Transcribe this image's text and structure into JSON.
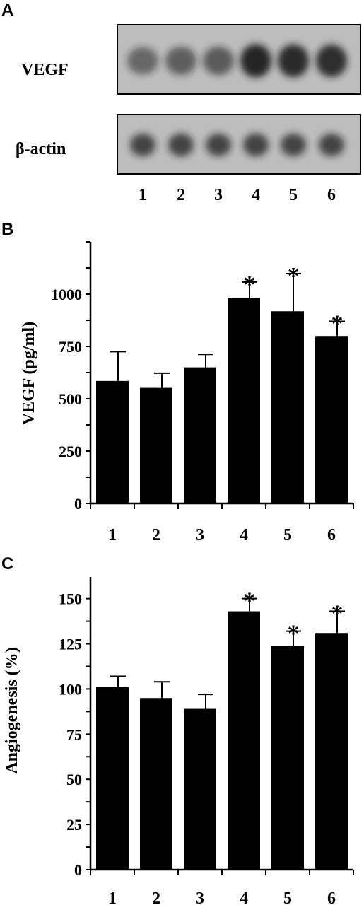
{
  "panel_a": {
    "label": "A",
    "blots": [
      {
        "name": "VEGF",
        "band_intensity": [
          0.55,
          0.6,
          0.62,
          0.95,
          0.92,
          0.9
        ]
      },
      {
        "name": "β-actin",
        "band_intensity": [
          0.75,
          0.78,
          0.75,
          0.78,
          0.75,
          0.75
        ]
      }
    ],
    "lanes": [
      "1",
      "2",
      "3",
      "4",
      "5",
      "6"
    ]
  },
  "chart_data": [
    {
      "panel": "B",
      "type": "bar",
      "categories": [
        "1",
        "2",
        "3",
        "4",
        "5",
        "6"
      ],
      "values": [
        585,
        552,
        650,
        980,
        918,
        800
      ],
      "errors": [
        140,
        70,
        62,
        78,
        180,
        70
      ],
      "significant": [
        false,
        false,
        false,
        true,
        true,
        true
      ],
      "significance_marker": "*",
      "title": "",
      "xlabel": "",
      "ylabel": "VEGF (pg/ml)",
      "ylim": [
        0,
        1250
      ],
      "yticks": [
        0,
        250,
        500,
        750,
        1000
      ]
    },
    {
      "panel": "C",
      "type": "bar",
      "categories": [
        "1",
        "2",
        "3",
        "4",
        "5",
        "6"
      ],
      "values": [
        101,
        95,
        89,
        143,
        124,
        131
      ],
      "errors": [
        6,
        9,
        8,
        7,
        8,
        12
      ],
      "significant": [
        false,
        false,
        false,
        true,
        true,
        true
      ],
      "significance_marker": "*",
      "title": "",
      "xlabel": "",
      "ylabel": "Angiogenesis (%)",
      "ylim": [
        0,
        162
      ],
      "yticks": [
        0,
        25,
        50,
        75,
        100,
        125,
        150
      ]
    }
  ],
  "colors": {
    "bar": "#000000",
    "background": "#ffffff",
    "blot_background": "#bdbdbd",
    "band": "#1e1e1e"
  }
}
